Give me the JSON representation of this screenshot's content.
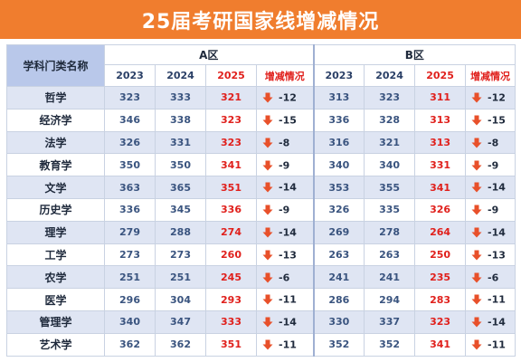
{
  "title": "25届考研国家线增减情况",
  "header": {
    "subject_label": "学科门类名称",
    "area_a": "A区",
    "area_b": "B区",
    "years": [
      "2023",
      "2024",
      "2025"
    ],
    "change_label": "增减情况"
  },
  "rows": [
    {
      "subject": "哲学",
      "a": [
        "323",
        "333",
        "321",
        "-12"
      ],
      "b": [
        "313",
        "323",
        "311",
        "-12"
      ]
    },
    {
      "subject": "经济学",
      "a": [
        "346",
        "338",
        "323",
        "-15"
      ],
      "b": [
        "336",
        "328",
        "313",
        "-15"
      ]
    },
    {
      "subject": "法学",
      "a": [
        "326",
        "331",
        "323",
        "-8"
      ],
      "b": [
        "316",
        "321",
        "313",
        "-8"
      ]
    },
    {
      "subject": "教育学",
      "a": [
        "350",
        "350",
        "341",
        "-9"
      ],
      "b": [
        "340",
        "340",
        "331",
        "-9"
      ]
    },
    {
      "subject": "文学",
      "a": [
        "363",
        "365",
        "351",
        "-14"
      ],
      "b": [
        "353",
        "355",
        "341",
        "-14"
      ]
    },
    {
      "subject": "历史学",
      "a": [
        "336",
        "345",
        "336",
        "-9"
      ],
      "b": [
        "326",
        "335",
        "326",
        "-9"
      ]
    },
    {
      "subject": "理学",
      "a": [
        "279",
        "288",
        "274",
        "-14"
      ],
      "b": [
        "269",
        "278",
        "264",
        "-14"
      ]
    },
    {
      "subject": "工学",
      "a": [
        "273",
        "273",
        "260",
        "-13"
      ],
      "b": [
        "263",
        "263",
        "250",
        "-13"
      ]
    },
    {
      "subject": "农学",
      "a": [
        "251",
        "251",
        "245",
        "-6"
      ],
      "b": [
        "241",
        "241",
        "235",
        "-6"
      ]
    },
    {
      "subject": "医学",
      "a": [
        "296",
        "304",
        "293",
        "-11"
      ],
      "b": [
        "286",
        "294",
        "283",
        "-11"
      ]
    },
    {
      "subject": "管理学",
      "a": [
        "340",
        "347",
        "333",
        "-14"
      ],
      "b": [
        "330",
        "337",
        "323",
        "-14"
      ]
    },
    {
      "subject": "艺术学",
      "a": [
        "362",
        "362",
        "351",
        "-11"
      ],
      "b": [
        "352",
        "352",
        "341",
        "-11"
      ]
    }
  ],
  "colors": {
    "title_bg": "#f07d2e",
    "header_bg": "#b9c8ea",
    "stripe_bg": "#dfe5f3",
    "value_blue": "#3a547f",
    "value_red": "#e0201c",
    "arrow": "#e8502a"
  },
  "icons": {
    "change": "down-arrow-icon"
  }
}
